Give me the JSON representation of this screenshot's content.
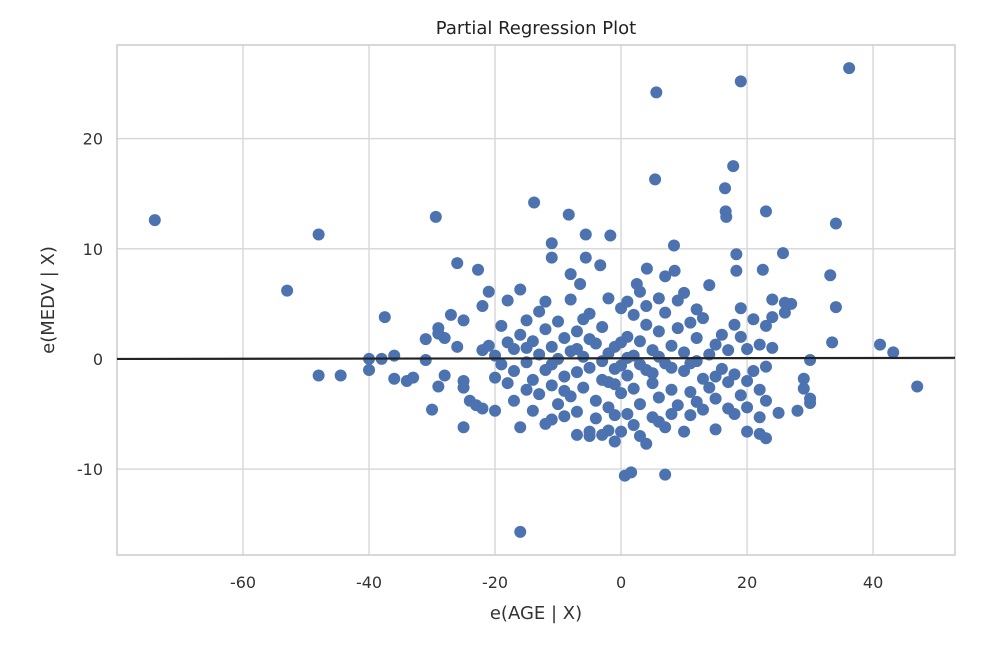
{
  "chart_data": {
    "type": "scatter",
    "title": "Partial Regression Plot",
    "xlabel": "e(AGE | X)",
    "ylabel": "e(MEDV | X)",
    "xlim": [
      -80,
      53
    ],
    "ylim": [
      -17.8,
      28.5
    ],
    "xticks": [
      -60,
      -40,
      -20,
      0,
      20,
      40
    ],
    "yticks": [
      -10,
      0,
      10,
      20
    ],
    "xtick_labels": [
      "-60",
      "-40",
      "-20",
      "0",
      "20",
      "40"
    ],
    "ytick_labels": [
      "-10",
      "0",
      "10",
      "20"
    ],
    "grid": true,
    "point_color": "#4c72b0",
    "line_color": "#222222",
    "fit_line": {
      "x": [
        -80,
        53
      ],
      "y": [
        0.0,
        0.1
      ]
    },
    "points": [
      [
        -74,
        12.6
      ],
      [
        -53,
        6.2
      ],
      [
        -48,
        11.3
      ],
      [
        -48,
        -1.5
      ],
      [
        -44.5,
        -1.5
      ],
      [
        -29.4,
        12.9
      ],
      [
        -37.5,
        3.8
      ],
      [
        -26,
        8.7
      ],
      [
        -22.7,
        8.1
      ],
      [
        -13.8,
        14.2
      ],
      [
        -16,
        -15.7
      ],
      [
        -8.3,
        13.1
      ],
      [
        5.6,
        24.2
      ],
      [
        19,
        25.2
      ],
      [
        36.2,
        26.4
      ],
      [
        5.4,
        16.3
      ],
      [
        17.8,
        17.5
      ],
      [
        16.5,
        15.5
      ],
      [
        16.6,
        13.4
      ],
      [
        16.7,
        12.9
      ],
      [
        23,
        13.4
      ],
      [
        34.1,
        12.3
      ],
      [
        25.7,
        9.6
      ],
      [
        33.2,
        7.6
      ],
      [
        34.1,
        4.7
      ],
      [
        33.5,
        1.5
      ],
      [
        41.1,
        1.3
      ],
      [
        43.2,
        0.6
      ],
      [
        47,
        -2.5
      ],
      [
        7,
        -10.5
      ],
      [
        1.6,
        -10.3
      ],
      [
        0.6,
        -10.6
      ],
      [
        -5.6,
        11.3
      ],
      [
        -11,
        10.5
      ],
      [
        -1.7,
        11.2
      ],
      [
        8.4,
        10.3
      ],
      [
        4.1,
        8.2
      ],
      [
        18.3,
        9.5
      ],
      [
        18.3,
        8
      ],
      [
        22.5,
        8.1
      ],
      [
        -3.3,
        8.5
      ],
      [
        -5.6,
        9.2
      ],
      [
        -11,
        9.2
      ],
      [
        -8,
        7.7
      ],
      [
        -6.5,
        6.8
      ],
      [
        8.5,
        8
      ],
      [
        7,
        7.5
      ],
      [
        2.5,
        6.8
      ],
      [
        -40,
        -1
      ],
      [
        -40,
        0
      ],
      [
        -38,
        0
      ],
      [
        -36,
        0.3
      ],
      [
        -36,
        -1.8
      ],
      [
        -34,
        -2
      ],
      [
        -33,
        -1.7
      ],
      [
        -31,
        -0.1
      ],
      [
        -31,
        1.8
      ],
      [
        -30,
        -4.6
      ],
      [
        -29,
        2.8
      ],
      [
        -29,
        2.3
      ],
      [
        -29,
        -2.5
      ],
      [
        -28,
        1.9
      ],
      [
        -28,
        -1.5
      ],
      [
        -27,
        4
      ],
      [
        -26,
        1.1
      ],
      [
        -25,
        3.5
      ],
      [
        -25,
        -2
      ],
      [
        -25,
        -2.6
      ],
      [
        -25,
        -6.2
      ],
      [
        -24,
        -3.8
      ],
      [
        -23,
        -4.2
      ],
      [
        -22,
        -4.5
      ],
      [
        -22,
        4.8
      ],
      [
        -21,
        6.1
      ],
      [
        -20,
        -1.7
      ],
      [
        -20,
        -4.7
      ],
      [
        -19,
        3
      ],
      [
        -18,
        5.3
      ],
      [
        -17,
        -3.8
      ],
      [
        -16,
        6.3
      ],
      [
        -16,
        -6.2
      ],
      [
        -15,
        3.5
      ],
      [
        20,
        -6.6
      ],
      [
        22,
        -6.8
      ],
      [
        23,
        -7.2
      ],
      [
        25,
        -4.9
      ],
      [
        28,
        -4.7
      ],
      [
        30,
        -3.6
      ],
      [
        30,
        -4
      ],
      [
        29,
        -2.7
      ],
      [
        29,
        -1.8
      ],
      [
        26,
        4.2
      ],
      [
        26,
        5.1
      ],
      [
        27,
        5
      ],
      [
        24,
        5.4
      ],
      [
        24,
        3.8
      ],
      [
        23,
        3
      ],
      [
        24,
        1
      ],
      [
        30,
        -0.1
      ],
      [
        22,
        -5.3
      ],
      [
        20,
        -2
      ],
      [
        21,
        3.6
      ],
      [
        19,
        2
      ],
      [
        19,
        4.6
      ],
      [
        18,
        -5
      ],
      [
        17,
        -4.5
      ],
      [
        15,
        -6.4
      ],
      [
        13,
        -4.6
      ],
      [
        14,
        6.7
      ],
      [
        12,
        -3.9
      ],
      [
        10,
        -6.6
      ],
      [
        8,
        -5
      ],
      [
        6,
        -5.7
      ],
      [
        4,
        -7.7
      ],
      [
        3,
        -7
      ],
      [
        0,
        -6.6
      ],
      [
        -1,
        -7.5
      ],
      [
        -2,
        -6.5
      ],
      [
        -3,
        -6.9
      ],
      [
        -5,
        -6.6
      ],
      [
        -5,
        -7
      ],
      [
        -7,
        -6.9
      ],
      [
        -9,
        -5.2
      ],
      [
        -11,
        -5.5
      ],
      [
        -12,
        -5.9
      ],
      [
        -14,
        -4.7
      ],
      [
        -10,
        -4.1
      ],
      [
        -22,
        0.8
      ],
      [
        -21,
        1.2
      ],
      [
        -20,
        0.3
      ],
      [
        -19,
        -0.5
      ],
      [
        -18,
        1.5
      ],
      [
        -18,
        -2.2
      ],
      [
        -17,
        0.9
      ],
      [
        -17,
        -1.1
      ],
      [
        -16,
        2.2
      ],
      [
        -15,
        -0.3
      ],
      [
        -15,
        -2.8
      ],
      [
        -14,
        1.6
      ],
      [
        -14,
        -1.9
      ],
      [
        -13,
        0.4
      ],
      [
        -13,
        -3.2
      ],
      [
        -12,
        2.7
      ],
      [
        -12,
        -1
      ],
      [
        -11,
        1.1
      ],
      [
        -11,
        -2.4
      ],
      [
        -10,
        3.4
      ],
      [
        -10,
        0
      ],
      [
        -9,
        -1.6
      ],
      [
        -9,
        1.9
      ],
      [
        -8,
        -3.4
      ],
      [
        -8,
        0.7
      ],
      [
        -7,
        2.5
      ],
      [
        -7,
        -1.2
      ],
      [
        -6,
        -2.6
      ],
      [
        -6,
        0.2
      ],
      [
        -5,
        4.1
      ],
      [
        -5,
        -0.8
      ],
      [
        -4,
        1.4
      ],
      [
        -4,
        -3.8
      ],
      [
        -3,
        -1.9
      ],
      [
        -3,
        2.9
      ],
      [
        -2,
        0.5
      ],
      [
        -2,
        -4.4
      ],
      [
        -1,
        -2.3
      ],
      [
        -1,
        1.1
      ],
      [
        0,
        4.6
      ],
      [
        0,
        -0.6
      ],
      [
        0,
        -3.1
      ],
      [
        1,
        2
      ],
      [
        1,
        -1.5
      ],
      [
        1,
        -5
      ],
      [
        2,
        0.3
      ],
      [
        2,
        -2.7
      ],
      [
        2,
        4
      ],
      [
        3,
        -4.1
      ],
      [
        3,
        1.6
      ],
      [
        4,
        -1
      ],
      [
        4,
        3.1
      ],
      [
        5,
        -2.2
      ],
      [
        5,
        0.8
      ],
      [
        5,
        -5.3
      ],
      [
        6,
        2.5
      ],
      [
        6,
        -3.5
      ],
      [
        7,
        -0.4
      ],
      [
        7,
        4.2
      ],
      [
        8,
        -2.8
      ],
      [
        8,
        1.2
      ],
      [
        9,
        -4.2
      ],
      [
        9,
        2.8
      ],
      [
        10,
        -1.1
      ],
      [
        10,
        0.6
      ],
      [
        11,
        3.3
      ],
      [
        11,
        -3
      ],
      [
        12,
        -0.2
      ],
      [
        12,
        1.9
      ],
      [
        13,
        -1.8
      ],
      [
        13,
        3.7
      ],
      [
        14,
        0.4
      ],
      [
        14,
        -2.6
      ],
      [
        15,
        1.3
      ],
      [
        15,
        -3.6
      ],
      [
        16,
        -0.9
      ],
      [
        16,
        2.2
      ],
      [
        17,
        -2.1
      ],
      [
        17,
        0.8
      ],
      [
        18,
        -1.4
      ],
      [
        18,
        3.1
      ],
      [
        19,
        -3.3
      ],
      [
        20,
        0.9
      ],
      [
        21,
        -1.1
      ],
      [
        22,
        1.3
      ],
      [
        22,
        -2.8
      ],
      [
        23,
        -0.7
      ],
      [
        23,
        -3.8
      ],
      [
        20,
        -4.4
      ],
      [
        -2,
        5.5
      ],
      [
        1,
        5.2
      ],
      [
        3,
        6.1
      ],
      [
        -8,
        5.4
      ],
      [
        -12,
        5.2
      ],
      [
        -13,
        4.3
      ],
      [
        9,
        5.3
      ],
      [
        10,
        6
      ],
      [
        12,
        4.5
      ],
      [
        4,
        4.8
      ],
      [
        -6,
        3.6
      ],
      [
        6,
        5.5
      ],
      [
        -4,
        -5.4
      ],
      [
        2,
        -6
      ],
      [
        -1,
        -5.1
      ],
      [
        7,
        -6.2
      ],
      [
        11,
        -5.1
      ],
      [
        -7,
        -4.8
      ],
      [
        -9,
        -2.9
      ],
      [
        -3,
        -0.2
      ],
      [
        -1,
        -0.9
      ],
      [
        1,
        0.1
      ],
      [
        3,
        -0.5
      ],
      [
        -5,
        1.8
      ],
      [
        5,
        -1.3
      ],
      [
        -2,
        -2.1
      ],
      [
        0,
        1.5
      ],
      [
        -7,
        0.9
      ],
      [
        6,
        0.2
      ],
      [
        8,
        -0.8
      ],
      [
        -11,
        -0.5
      ],
      [
        11,
        -0.4
      ],
      [
        -15,
        1
      ],
      [
        15,
        -1.6
      ]
    ]
  }
}
